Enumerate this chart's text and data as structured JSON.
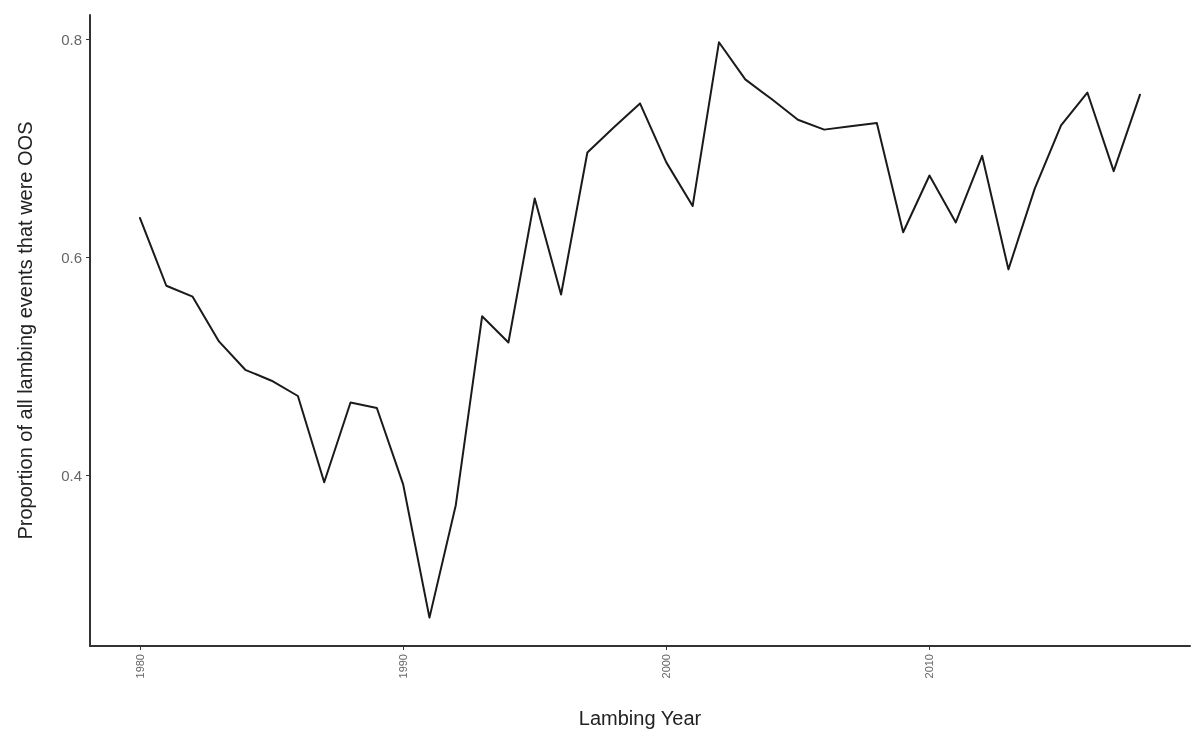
{
  "chart_data": {
    "type": "line",
    "xlabel": "Lambing Year",
    "ylabel": "Proportion of all lambing events that were OOS",
    "x": [
      1980,
      1981,
      1982,
      1983,
      1984,
      1985,
      1986,
      1987,
      1988,
      1989,
      1990,
      1991,
      1992,
      1993,
      1994,
      1995,
      1996,
      1997,
      1998,
      1999,
      2000,
      2001,
      2002,
      2003,
      2004,
      2005,
      2006,
      2007,
      2008,
      2009,
      2010,
      2011,
      2012,
      2013,
      2014,
      2015,
      2016,
      2017,
      2018
    ],
    "series": [
      {
        "color": "#1a1a1a",
        "values": [
          0.636,
          0.574,
          0.564,
          0.523,
          0.497,
          0.487,
          0.473,
          0.394,
          0.467,
          0.462,
          0.392,
          0.27,
          0.373,
          0.546,
          0.522,
          0.654,
          0.566,
          0.696,
          0.719,
          0.741,
          0.687,
          0.647,
          0.797,
          0.763,
          0.745,
          0.726,
          0.717,
          0.72,
          0.723,
          0.623,
          0.675,
          0.632,
          0.693,
          0.589,
          0.663,
          0.721,
          0.751,
          0.679,
          0.749
        ]
      }
    ],
    "xlim": [
      1978.1,
      2019.9
    ],
    "ylim": [
      0.244,
      0.822
    ],
    "xticks": [
      1980,
      1990,
      2000,
      2010
    ],
    "yticks": [
      0.4,
      0.6,
      0.8
    ],
    "grid": false,
    "marker": "none",
    "line_style": "solid"
  }
}
